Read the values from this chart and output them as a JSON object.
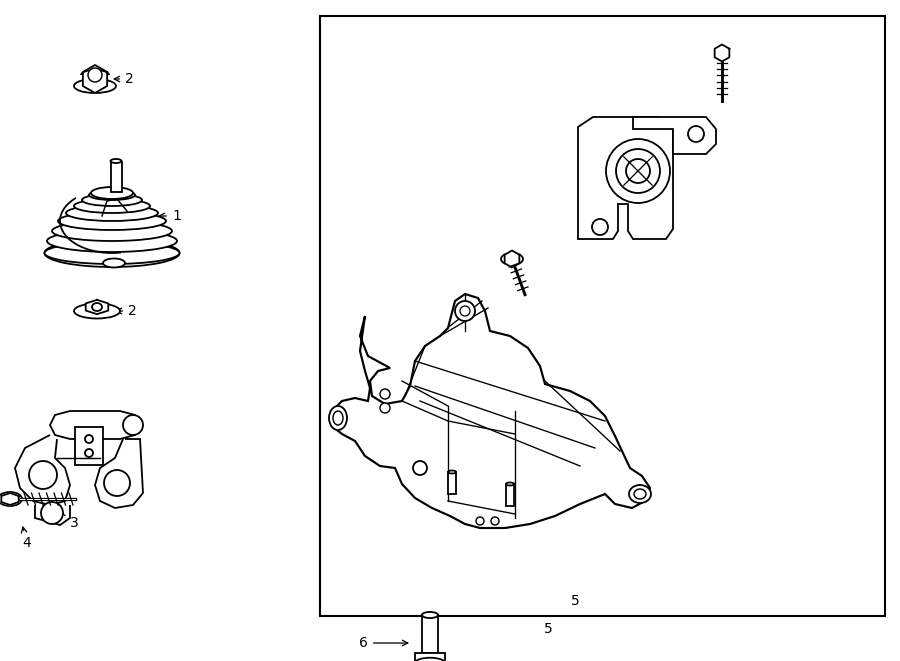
{
  "background_color": "#ffffff",
  "line_color": "#000000",
  "line_width": 1.3,
  "fig_width": 9.0,
  "fig_height": 6.61,
  "dpi": 100,
  "label_fontsize": 10
}
